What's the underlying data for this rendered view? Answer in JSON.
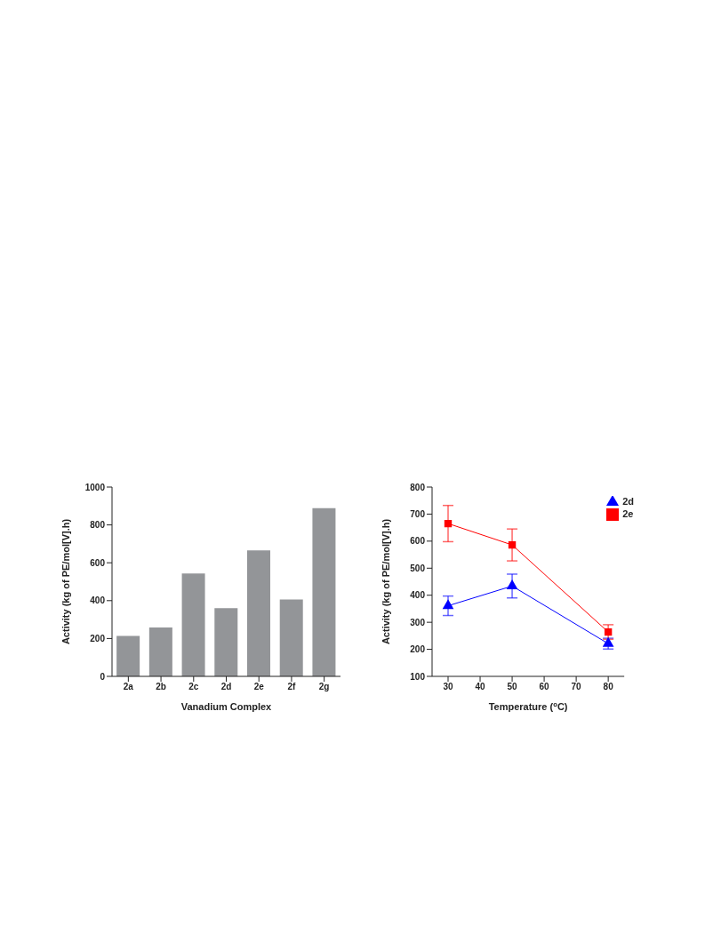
{
  "chart_data": [
    {
      "type": "bar",
      "xlabel": "Vanadium Complex",
      "ylabel": "Activity (kg of PE/mol[V].h)",
      "categories": [
        "2a",
        "2b",
        "2c",
        "2d",
        "2e",
        "2f",
        "2g"
      ],
      "values": [
        214,
        258,
        543,
        360,
        666,
        406,
        888
      ],
      "color": "#939598",
      "ylim": [
        0,
        1000
      ],
      "yticks": [
        0,
        200,
        400,
        600,
        800,
        1000
      ],
      "grid": false,
      "legend": false
    },
    {
      "type": "line",
      "xlabel": "Temperature ($^{o}$C)",
      "ylabel": "Activity (kg of PE/mol[V].h)",
      "x": [
        30,
        50,
        80
      ],
      "xlim": [
        25,
        85
      ],
      "xticks": [
        30,
        40,
        50,
        60,
        70,
        80
      ],
      "ylim": [
        100,
        800
      ],
      "yticks": [
        100,
        200,
        300,
        400,
        500,
        600,
        700,
        800
      ],
      "grid": false,
      "legend": "top right",
      "line_style": "solid",
      "series": [
        {
          "name": "2d",
          "color": "#0000ff",
          "marker": "triangle",
          "values": [
            361,
            434,
            221
          ],
          "errors": [
            36,
            44,
            20
          ]
        },
        {
          "name": "2e",
          "color": "#ff0000",
          "marker": "square",
          "values": [
            665,
            586,
            264
          ],
          "errors": [
            67,
            59,
            27
          ]
        }
      ]
    }
  ]
}
